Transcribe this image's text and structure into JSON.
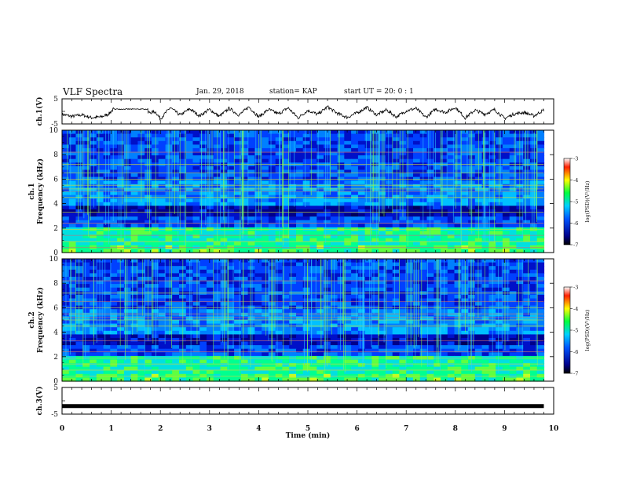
{
  "header": {
    "title": "VLF Spectra",
    "date": "Jan. 29, 2018",
    "station": "station= KAP",
    "start": "start UT =  20: 0  : 1"
  },
  "chart_data": [
    {
      "type": "line",
      "panel": "ch1-waveform",
      "ylabel": "ch.1(V)",
      "yticks": [
        "5",
        "-5"
      ],
      "ylim": [
        -5,
        5
      ],
      "xlim": [
        0,
        10
      ],
      "trace_color": "#000000",
      "shape": [
        [
          0.0,
          -1.2
        ],
        [
          0.2,
          -2.0
        ],
        [
          0.4,
          -1.4
        ],
        [
          0.6,
          -2.5
        ],
        [
          0.8,
          -2.2
        ],
        [
          0.95,
          -1.0
        ],
        [
          1.05,
          1.0
        ],
        [
          1.3,
          0.8
        ],
        [
          1.55,
          1.0
        ],
        [
          1.75,
          -0.5
        ],
        [
          1.9,
          -0.2
        ],
        [
          2.0,
          -3.0
        ],
        [
          2.2,
          1.5
        ],
        [
          2.4,
          -1.5
        ],
        [
          2.6,
          1.0
        ],
        [
          2.8,
          -1.8
        ],
        [
          3.0,
          0.8
        ],
        [
          3.2,
          -2.0
        ],
        [
          3.4,
          1.2
        ],
        [
          3.6,
          -1.5
        ],
        [
          3.8,
          1.8
        ],
        [
          4.0,
          -2.2
        ],
        [
          4.2,
          0.8
        ],
        [
          4.4,
          -1.0
        ],
        [
          4.6,
          1.4
        ],
        [
          4.8,
          -2.6
        ],
        [
          5.0,
          0.4
        ],
        [
          5.2,
          -1.2
        ],
        [
          5.4,
          1.8
        ],
        [
          5.6,
          -0.8
        ],
        [
          5.8,
          -2.4
        ],
        [
          6.0,
          -0.6
        ],
        [
          6.2,
          1.6
        ],
        [
          6.4,
          -1.4
        ],
        [
          6.6,
          0.6
        ],
        [
          6.8,
          -2.2
        ],
        [
          7.0,
          0.2
        ],
        [
          7.2,
          1.2
        ],
        [
          7.4,
          -2.4
        ],
        [
          7.6,
          0.9
        ],
        [
          7.8,
          -0.4
        ],
        [
          8.0,
          1.6
        ],
        [
          8.2,
          -2.6
        ],
        [
          8.4,
          0.5
        ],
        [
          8.6,
          -1.1
        ],
        [
          8.8,
          0.7
        ],
        [
          9.0,
          -2.8
        ],
        [
          9.2,
          -1.0
        ],
        [
          9.4,
          -0.4
        ],
        [
          9.6,
          -1.8
        ],
        [
          9.8,
          0.6
        ]
      ]
    },
    {
      "type": "heatmap",
      "panel": "ch1-spectrogram",
      "ylabel": "ch.1",
      "ylabel2": "Frequency (kHz)",
      "yticks": [
        "0",
        "2",
        "4",
        "6",
        "8",
        "10"
      ],
      "ylim": [
        0,
        10
      ],
      "xlim": [
        0,
        9.8
      ],
      "colorbar": {
        "ticks": [
          "-3",
          "-4",
          "-5",
          "-6",
          "-7"
        ],
        "range": [
          -7,
          -3
        ],
        "label": "log(PSD)(V²/Hz)"
      }
    },
    {
      "type": "heatmap",
      "panel": "ch2-spectrogram",
      "ylabel": "ch.2",
      "ylabel2": "Frequency (kHz)",
      "yticks": [
        "0",
        "2",
        "4",
        "6",
        "8",
        "10"
      ],
      "ylim": [
        0,
        10
      ],
      "xlim": [
        0,
        9.8
      ],
      "colorbar": {
        "ticks": [
          "-3",
          "-4",
          "-5",
          "-6",
          "-7"
        ],
        "range": [
          -7,
          -3
        ],
        "label": "log(PSD)(V²/Hz)"
      }
    },
    {
      "type": "line",
      "panel": "ch3-waveform",
      "ylabel": "ch.3(V)",
      "yticks": [
        "5",
        "-5"
      ],
      "ylim": [
        -5,
        5
      ],
      "xlim": [
        0,
        10
      ],
      "level": -2.0,
      "trace_color": "#000000"
    }
  ],
  "xaxis": {
    "label": "Time (min)",
    "ticks": [
      "0",
      "1",
      "2",
      "3",
      "4",
      "5",
      "6",
      "7",
      "8",
      "9",
      "10"
    ]
  }
}
